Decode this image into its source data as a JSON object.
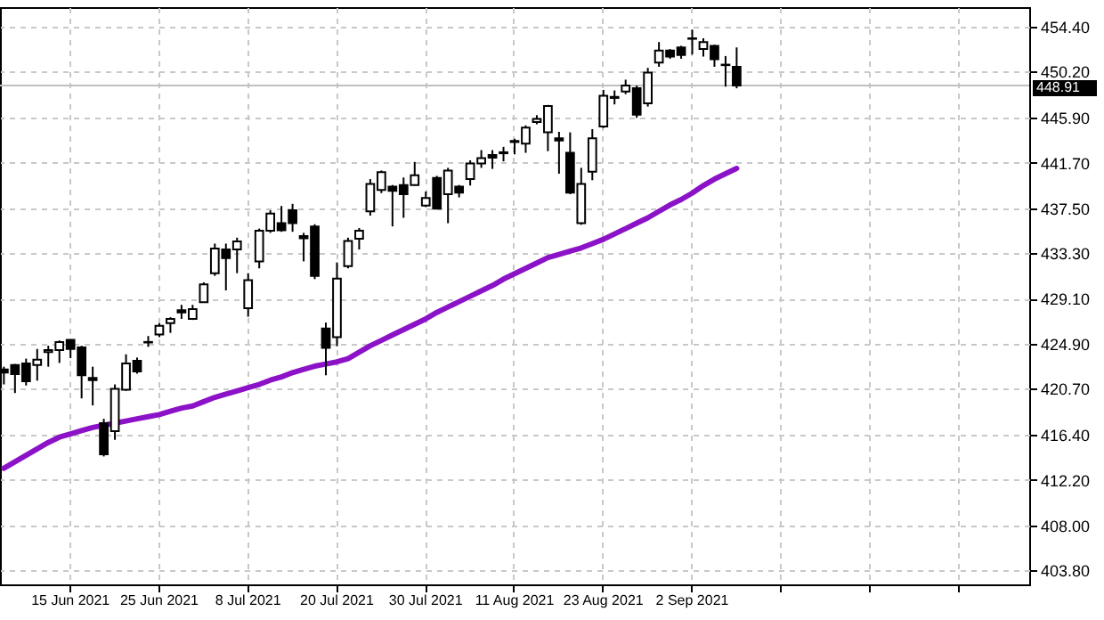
{
  "chart_data": {
    "type": "candlestick",
    "categories": [
      null,
      null,
      null,
      null,
      null,
      null,
      "15 Jun 2021",
      null,
      null,
      null,
      null,
      null,
      null,
      null,
      "25 Jun 2021",
      null,
      null,
      null,
      null,
      null,
      null,
      null,
      "8 Jul 2021",
      null,
      null,
      null,
      null,
      null,
      null,
      null,
      "20 Jul 2021",
      null,
      null,
      null,
      null,
      null,
      null,
      null,
      "30 Jul 2021",
      null,
      null,
      null,
      null,
      null,
      null,
      null,
      "11 Aug 2021",
      null,
      null,
      null,
      null,
      null,
      null,
      null,
      "23 Aug 2021",
      null,
      null,
      null,
      null,
      null,
      null,
      null,
      "2 Sep 2021",
      null,
      null,
      null,
      null,
      null,
      null,
      null,
      null,
      null,
      null,
      null,
      null,
      null,
      null,
      null,
      null,
      null,
      null,
      null,
      null,
      null,
      null,
      null,
      null,
      null,
      null,
      null,
      null,
      null,
      null
    ],
    "ohlc": [
      [
        422.5,
        422.75,
        421.1,
        422.2
      ],
      [
        422.9,
        423.0,
        420.3,
        422.05
      ],
      [
        423.05,
        423.5,
        421.0,
        421.4
      ],
      [
        422.9,
        424.4,
        421.45,
        423.4
      ],
      [
        424.1,
        424.7,
        422.75,
        424.3
      ],
      [
        424.3,
        425.2,
        423.1,
        425.05
      ],
      [
        425.25,
        425.3,
        423.55,
        424.4
      ],
      [
        424.55,
        424.7,
        419.8,
        421.95
      ],
      [
        421.7,
        422.75,
        419.15,
        421.5
      ],
      [
        417.5,
        417.9,
        414.4,
        414.6
      ],
      [
        416.75,
        421.1,
        415.95,
        420.7
      ],
      [
        420.6,
        423.9,
        420.5,
        423.05
      ],
      [
        423.3,
        423.6,
        422.1,
        422.3
      ],
      [
        425.0,
        425.6,
        424.6,
        425.05
      ],
      [
        425.75,
        426.8,
        425.5,
        426.55
      ],
      [
        426.8,
        427.35,
        425.9,
        427.2
      ],
      [
        428.0,
        428.5,
        427.2,
        427.8
      ],
      [
        427.2,
        428.5,
        427.1,
        428.1
      ],
      [
        428.75,
        430.6,
        428.7,
        430.4
      ],
      [
        431.45,
        434.2,
        431.2,
        433.75
      ],
      [
        433.65,
        434.2,
        429.85,
        432.85
      ],
      [
        433.65,
        434.75,
        431.45,
        434.4
      ],
      [
        428.2,
        431.45,
        427.4,
        430.8
      ],
      [
        432.55,
        435.6,
        431.9,
        435.4
      ],
      [
        435.4,
        437.3,
        435.2,
        437.0
      ],
      [
        436.1,
        437.7,
        435.3,
        435.45
      ],
      [
        437.3,
        437.9,
        435.3,
        436.1
      ],
      [
        434.9,
        435.2,
        432.55,
        434.7
      ],
      [
        435.8,
        436.0,
        430.9,
        431.2
      ],
      [
        426.3,
        426.85,
        421.95,
        424.5
      ],
      [
        425.5,
        432.45,
        424.65,
        430.95
      ],
      [
        432.1,
        434.75,
        431.9,
        434.45
      ],
      [
        434.65,
        435.65,
        433.65,
        435.4
      ],
      [
        437.2,
        440.2,
        436.8,
        439.75
      ],
      [
        439.2,
        441.0,
        438.9,
        440.85
      ],
      [
        439.5,
        439.65,
        435.8,
        439.1
      ],
      [
        439.65,
        440.35,
        436.6,
        438.8
      ],
      [
        439.65,
        441.8,
        439.6,
        440.55
      ],
      [
        437.75,
        439.05,
        437.6,
        438.45
      ],
      [
        440.3,
        440.5,
        437.4,
        437.45
      ],
      [
        438.8,
        441.25,
        436.1,
        441.0
      ],
      [
        439.5,
        439.65,
        438.5,
        438.95
      ],
      [
        440.2,
        441.95,
        439.6,
        441.65
      ],
      [
        441.65,
        442.9,
        441.25,
        442.15
      ],
      [
        442.45,
        442.9,
        441.15,
        442.2
      ],
      [
        442.7,
        443.2,
        441.85,
        442.6
      ],
      [
        443.65,
        443.95,
        442.5,
        443.75
      ],
      [
        443.5,
        445.2,
        442.65,
        445.0
      ],
      [
        445.5,
        446.15,
        445.3,
        445.8
      ],
      [
        444.55,
        447.1,
        442.8,
        447.0
      ],
      [
        444.0,
        444.6,
        440.7,
        443.8
      ],
      [
        442.65,
        444.55,
        438.8,
        438.95
      ],
      [
        436.1,
        441.25,
        435.95,
        439.75
      ],
      [
        440.9,
        444.85,
        440.1,
        444.0
      ],
      [
        445.1,
        448.5,
        444.95,
        447.95
      ],
      [
        447.75,
        448.45,
        447.15,
        447.85
      ],
      [
        448.35,
        449.45,
        448.1,
        448.9
      ],
      [
        448.65,
        448.9,
        445.9,
        446.2
      ],
      [
        447.25,
        450.55,
        446.95,
        450.1
      ],
      [
        451.05,
        452.95,
        450.65,
        452.15
      ],
      [
        452.15,
        452.3,
        451.4,
        451.6
      ],
      [
        452.45,
        452.6,
        451.4,
        451.75
      ],
      [
        453.25,
        454.1,
        451.8,
        453.3
      ],
      [
        452.3,
        453.3,
        451.6,
        452.95
      ],
      [
        452.6,
        452.7,
        450.65,
        451.35
      ],
      [
        450.85,
        451.65,
        448.8,
        450.8
      ],
      [
        450.65,
        452.45,
        448.65,
        448.91
      ],
      null,
      null,
      null,
      null,
      null,
      null,
      null,
      null,
      null,
      null,
      null,
      null,
      null,
      null,
      null,
      null,
      null,
      null,
      null,
      null,
      null,
      null,
      null,
      null,
      null,
      null
    ],
    "series": [
      {
        "type": "line",
        "color": "#8c12c8",
        "values": [
          413.3,
          413.9,
          414.5,
          415.1,
          415.7,
          416.2,
          416.5,
          416.8,
          417.1,
          417.3,
          417.5,
          417.7,
          417.9,
          418.1,
          418.3,
          418.6,
          418.9,
          419.1,
          419.5,
          419.9,
          420.2,
          420.5,
          420.8,
          421.1,
          421.5,
          421.8,
          422.2,
          422.5,
          422.8,
          423.0,
          423.2,
          423.5,
          424.1,
          424.7,
          425.2,
          425.7,
          426.2,
          426.7,
          427.2,
          427.8,
          428.3,
          428.8,
          429.3,
          429.8,
          430.3,
          430.9,
          431.4,
          431.9,
          432.4,
          432.9,
          433.2,
          433.5,
          433.8,
          434.2,
          434.6,
          435.1,
          435.6,
          436.1,
          436.6,
          437.2,
          437.8,
          438.3,
          438.9,
          439.6,
          440.2,
          440.7,
          441.2,
          null,
          null,
          null,
          null,
          null,
          null,
          null,
          null,
          null,
          null,
          null,
          null,
          null,
          null,
          null,
          null,
          null,
          null,
          null,
          null,
          null,
          null,
          null,
          null,
          null,
          null
        ]
      }
    ],
    "ylim": [
      402.5,
      456.2
    ],
    "yticks": [
      {
        "value": 403.8,
        "label": "403.80"
      },
      {
        "value": 408,
        "label": "408.00"
      },
      {
        "value": 412.2,
        "label": "412.20"
      },
      {
        "value": 416.4,
        "label": "416.40"
      },
      {
        "value": 420.7,
        "label": "420.70"
      },
      {
        "value": 424.9,
        "label": "424.90"
      },
      {
        "value": 429.1,
        "label": "429.10"
      },
      {
        "value": 433.3,
        "label": "433.30"
      },
      {
        "value": 437.5,
        "label": "437.50"
      },
      {
        "value": 441.7,
        "label": "441.70"
      },
      {
        "value": 445.9,
        "label": "445.90"
      },
      {
        "value": 450.2,
        "label": "450.20"
      },
      {
        "value": 454.4,
        "label": "454.40"
      }
    ],
    "grid": true,
    "ref_lines": [
      {
        "axis": "y",
        "value": 448.91,
        "label": "448.91",
        "color": "#c0c0c0"
      }
    ]
  }
}
